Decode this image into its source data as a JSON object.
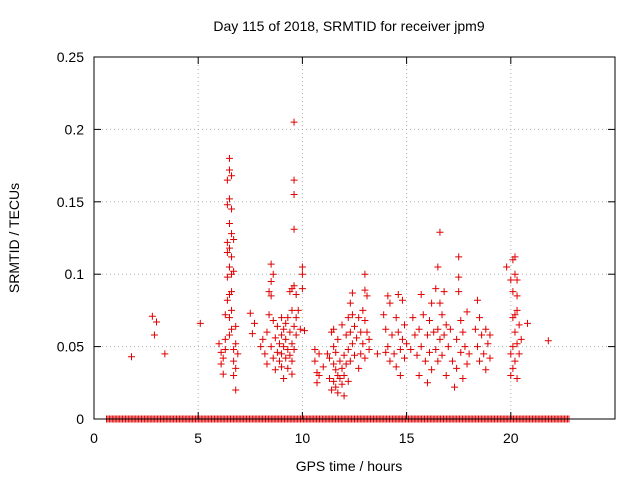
{
  "chart_data": {
    "type": "scatter",
    "title": "Day 115 of 2018, SRMTID for receiver jpm9",
    "xlabel": "GPS time / hours",
    "ylabel": "SRMTID / TECUs",
    "xlim": [
      0,
      25
    ],
    "ylim": [
      0,
      0.25
    ],
    "x_ticks": [
      0,
      5,
      10,
      15,
      20
    ],
    "x_tick_labels": [
      "0",
      "5",
      "10",
      "15",
      "20"
    ],
    "y_ticks": [
      0,
      0.05,
      0.1,
      0.15,
      0.2,
      0.25
    ],
    "y_tick_labels": [
      "0",
      "0.05",
      "0.1",
      "0.15",
      "0.2",
      "0.25"
    ],
    "grid": true,
    "marker": "+",
    "marker_color": "#e00000",
    "series": [
      {
        "name": "SRMTID",
        "points": [
          [
            1.8,
            0.043
          ],
          [
            2.8,
            0.071
          ],
          [
            2.9,
            0.058
          ],
          [
            3.0,
            0.067
          ],
          [
            3.4,
            0.045
          ],
          [
            5.1,
            0.066
          ],
          [
            6.0,
            0.052
          ],
          [
            6.1,
            0.046
          ],
          [
            6.1,
            0.038
          ],
          [
            6.2,
            0.031
          ],
          [
            6.2,
            0.042
          ],
          [
            6.3,
            0.055
          ],
          [
            6.3,
            0.048
          ],
          [
            6.3,
            0.072
          ],
          [
            6.4,
            0.082
          ],
          [
            6.4,
            0.098
          ],
          [
            6.4,
            0.115
          ],
          [
            6.4,
            0.122
          ],
          [
            6.4,
            0.148
          ],
          [
            6.4,
            0.165
          ],
          [
            6.5,
            0.172
          ],
          [
            6.5,
            0.152
          ],
          [
            6.5,
            0.135
          ],
          [
            6.5,
            0.118
          ],
          [
            6.5,
            0.105
          ],
          [
            6.5,
            0.086
          ],
          [
            6.5,
            0.07
          ],
          [
            6.5,
            0.058
          ],
          [
            6.5,
            0.18
          ],
          [
            6.6,
            0.168
          ],
          [
            6.6,
            0.145
          ],
          [
            6.6,
            0.128
          ],
          [
            6.6,
            0.112
          ],
          [
            6.6,
            0.1
          ],
          [
            6.6,
            0.088
          ],
          [
            6.6,
            0.075
          ],
          [
            6.6,
            0.062
          ],
          [
            6.7,
            0.124
          ],
          [
            6.7,
            0.102
          ],
          [
            6.7,
            0.048
          ],
          [
            6.7,
            0.04
          ],
          [
            6.7,
            0.03
          ],
          [
            6.8,
            0.064
          ],
          [
            6.8,
            0.052
          ],
          [
            6.8,
            0.035
          ],
          [
            6.8,
            0.02
          ],
          [
            6.9,
            0.045
          ],
          [
            7.5,
            0.073
          ],
          [
            7.6,
            0.059
          ],
          [
            7.7,
            0.066
          ],
          [
            8.0,
            0.05
          ],
          [
            8.1,
            0.055
          ],
          [
            8.2,
            0.045
          ],
          [
            8.3,
            0.06
          ],
          [
            8.3,
            0.038
          ],
          [
            8.4,
            0.072
          ],
          [
            8.4,
            0.088
          ],
          [
            8.5,
            0.095
          ],
          [
            8.5,
            0.107
          ],
          [
            8.5,
            0.085
          ],
          [
            8.5,
            0.05
          ],
          [
            8.6,
            0.1
          ],
          [
            8.6,
            0.068
          ],
          [
            8.6,
            0.042
          ],
          [
            8.7,
            0.056
          ],
          [
            8.7,
            0.034
          ],
          [
            8.8,
            0.064
          ],
          [
            8.8,
            0.046
          ],
          [
            8.9,
            0.052
          ],
          [
            8.9,
            0.04
          ],
          [
            9.0,
            0.07
          ],
          [
            9.0,
            0.058
          ],
          [
            9.0,
            0.045
          ],
          [
            9.0,
            0.036
          ],
          [
            9.1,
            0.062
          ],
          [
            9.1,
            0.05
          ],
          [
            9.1,
            0.028
          ],
          [
            9.2,
            0.055
          ],
          [
            9.2,
            0.042
          ],
          [
            9.2,
            0.066
          ],
          [
            9.3,
            0.048
          ],
          [
            9.3,
            0.035
          ],
          [
            9.3,
            0.07
          ],
          [
            9.4,
            0.06
          ],
          [
            9.4,
            0.044
          ],
          [
            9.4,
            0.088
          ],
          [
            9.5,
            0.09
          ],
          [
            9.5,
            0.075
          ],
          [
            9.5,
            0.052
          ],
          [
            9.5,
            0.04
          ],
          [
            9.5,
            0.031
          ],
          [
            9.6,
            0.205
          ],
          [
            9.6,
            0.165
          ],
          [
            9.6,
            0.155
          ],
          [
            9.6,
            0.131
          ],
          [
            9.6,
            0.092
          ],
          [
            9.6,
            0.064
          ],
          [
            9.6,
            0.048
          ],
          [
            9.7,
            0.07
          ],
          [
            9.7,
            0.058
          ],
          [
            9.7,
            0.086
          ],
          [
            9.8,
            0.075
          ],
          [
            9.9,
            0.062
          ],
          [
            10.0,
            0.105
          ],
          [
            10.0,
            0.1
          ],
          [
            10.0,
            0.09
          ],
          [
            10.1,
            0.061
          ],
          [
            10.6,
            0.048
          ],
          [
            10.6,
            0.04
          ],
          [
            10.7,
            0.032
          ],
          [
            10.7,
            0.025
          ],
          [
            10.8,
            0.045
          ],
          [
            10.8,
            0.03
          ],
          [
            11.0,
            0.036
          ],
          [
            11.2,
            0.045
          ],
          [
            11.3,
            0.042
          ],
          [
            11.3,
            0.028
          ],
          [
            11.4,
            0.02
          ],
          [
            11.4,
            0.06
          ],
          [
            11.5,
            0.062
          ],
          [
            11.5,
            0.05
          ],
          [
            11.5,
            0.038
          ],
          [
            11.5,
            0.026
          ],
          [
            11.6,
            0.034
          ],
          [
            11.6,
            0.022
          ],
          [
            11.6,
            0.046
          ],
          [
            11.7,
            0.03
          ],
          [
            11.7,
            0.018
          ],
          [
            11.7,
            0.055
          ],
          [
            11.8,
            0.028
          ],
          [
            11.8,
            0.04
          ],
          [
            11.9,
            0.035
          ],
          [
            11.9,
            0.024
          ],
          [
            11.9,
            0.065
          ],
          [
            12.0,
            0.03
          ],
          [
            12.0,
            0.044
          ],
          [
            12.0,
            0.016
          ],
          [
            12.1,
            0.058
          ],
          [
            12.1,
            0.038
          ],
          [
            12.2,
            0.07
          ],
          [
            12.2,
            0.048
          ],
          [
            12.2,
            0.026
          ],
          [
            12.3,
            0.08
          ],
          [
            12.3,
            0.06
          ],
          [
            12.3,
            0.04
          ],
          [
            12.4,
            0.087
          ],
          [
            12.4,
            0.072
          ],
          [
            12.4,
            0.052
          ],
          [
            12.5,
            0.064
          ],
          [
            12.5,
            0.044
          ],
          [
            12.6,
            0.056
          ],
          [
            12.7,
            0.07
          ],
          [
            12.7,
            0.035
          ],
          [
            12.8,
            0.06
          ],
          [
            12.8,
            0.045
          ],
          [
            12.9,
            0.075
          ],
          [
            12.9,
            0.052
          ],
          [
            13.0,
            0.089
          ],
          [
            13.0,
            0.068
          ],
          [
            13.0,
            0.042
          ],
          [
            13.0,
            0.1
          ],
          [
            13.1,
            0.085
          ],
          [
            13.1,
            0.06
          ],
          [
            13.2,
            0.055
          ],
          [
            13.2,
            0.048
          ],
          [
            13.6,
            0.045
          ],
          [
            13.9,
            0.072
          ],
          [
            14.0,
            0.062
          ],
          [
            14.0,
            0.046
          ],
          [
            14.1,
            0.085
          ],
          [
            14.1,
            0.05
          ],
          [
            14.2,
            0.04
          ],
          [
            14.2,
            0.08
          ],
          [
            14.3,
            0.058
          ],
          [
            14.4,
            0.045
          ],
          [
            14.5,
            0.07
          ],
          [
            14.5,
            0.036
          ],
          [
            14.6,
            0.086
          ],
          [
            14.6,
            0.06
          ],
          [
            14.7,
            0.048
          ],
          [
            14.7,
            0.03
          ],
          [
            14.8,
            0.082
          ],
          [
            14.8,
            0.055
          ],
          [
            14.9,
            0.065
          ],
          [
            14.9,
            0.042
          ],
          [
            15.0,
            0.052
          ],
          [
            15.2,
            0.048
          ],
          [
            15.3,
            0.07
          ],
          [
            15.4,
            0.058
          ],
          [
            15.5,
            0.044
          ],
          [
            15.6,
            0.03
          ],
          [
            15.6,
            0.062
          ],
          [
            15.7,
            0.086
          ],
          [
            15.7,
            0.05
          ],
          [
            15.8,
            0.072
          ],
          [
            15.9,
            0.04
          ],
          [
            16.0,
            0.058
          ],
          [
            16.0,
            0.025
          ],
          [
            16.1,
            0.068
          ],
          [
            16.1,
            0.046
          ],
          [
            16.2,
            0.08
          ],
          [
            16.2,
            0.034
          ],
          [
            16.3,
            0.06
          ],
          [
            16.4,
            0.09
          ],
          [
            16.4,
            0.048
          ],
          [
            16.5,
            0.105
          ],
          [
            16.5,
            0.062
          ],
          [
            16.5,
            0.04
          ],
          [
            16.6,
            0.129
          ],
          [
            16.6,
            0.08
          ],
          [
            16.6,
            0.055
          ],
          [
            16.7,
            0.072
          ],
          [
            16.7,
            0.044
          ],
          [
            16.8,
            0.088
          ],
          [
            16.8,
            0.058
          ],
          [
            16.9,
            0.065
          ],
          [
            16.9,
            0.03
          ],
          [
            17.0,
            0.05
          ],
          [
            17.1,
            0.062
          ],
          [
            17.2,
            0.04
          ],
          [
            17.3,
            0.022
          ],
          [
            17.4,
            0.055
          ],
          [
            17.4,
            0.035
          ],
          [
            17.5,
            0.112
          ],
          [
            17.5,
            0.098
          ],
          [
            17.5,
            0.088
          ],
          [
            17.6,
            0.068
          ],
          [
            17.6,
            0.046
          ],
          [
            17.7,
            0.06
          ],
          [
            17.7,
            0.028
          ],
          [
            17.8,
            0.05
          ],
          [
            17.9,
            0.038
          ],
          [
            17.9,
            0.074
          ],
          [
            18.0,
            0.045
          ],
          [
            18.3,
            0.062
          ],
          [
            18.4,
            0.082
          ],
          [
            18.4,
            0.05
          ],
          [
            18.5,
            0.07
          ],
          [
            18.5,
            0.04
          ],
          [
            18.6,
            0.058
          ],
          [
            18.7,
            0.045
          ],
          [
            18.8,
            0.062
          ],
          [
            18.8,
            0.034
          ],
          [
            18.9,
            0.052
          ],
          [
            19.0,
            0.058
          ],
          [
            19.0,
            0.042
          ],
          [
            19.8,
            0.105
          ],
          [
            20.0,
            0.096
          ],
          [
            20.0,
            0.045
          ],
          [
            20.0,
            0.03
          ],
          [
            20.1,
            0.11
          ],
          [
            20.1,
            0.088
          ],
          [
            20.1,
            0.07
          ],
          [
            20.1,
            0.05
          ],
          [
            20.1,
            0.035
          ],
          [
            20.2,
            0.112
          ],
          [
            20.2,
            0.1
          ],
          [
            20.2,
            0.072
          ],
          [
            20.2,
            0.06
          ],
          [
            20.2,
            0.04
          ],
          [
            20.3,
            0.096
          ],
          [
            20.3,
            0.085
          ],
          [
            20.3,
            0.075
          ],
          [
            20.3,
            0.052
          ],
          [
            20.3,
            0.028
          ],
          [
            20.4,
            0.065
          ],
          [
            20.4,
            0.045
          ],
          [
            20.5,
            0.055
          ],
          [
            20.8,
            0.066
          ],
          [
            21.8,
            0.054
          ]
        ],
        "zero_baseline": {
          "x_start": 0.6,
          "x_end": 22.8,
          "step": 0.07,
          "y": 0
        }
      }
    ]
  }
}
